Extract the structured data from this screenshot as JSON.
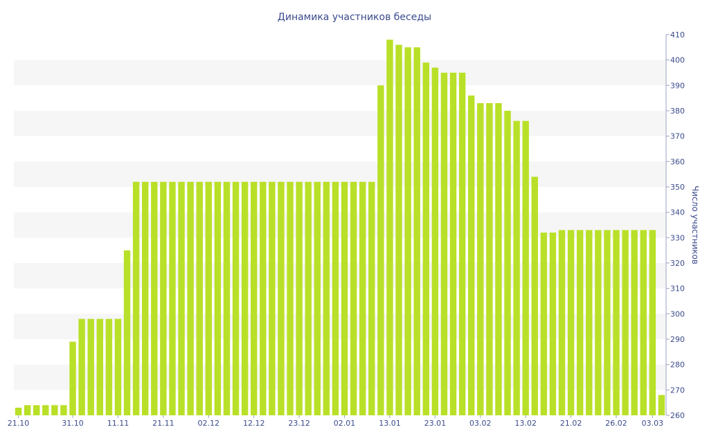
{
  "chart_data": {
    "type": "bar",
    "title": "Динамика участников беседы",
    "xlabel": "",
    "ylabel": "Число участников",
    "ylim": [
      260,
      410
    ],
    "yticks": [
      260,
      270,
      280,
      290,
      300,
      310,
      320,
      330,
      340,
      350,
      360,
      370,
      380,
      390,
      400,
      410
    ],
    "y_axis_side": "right",
    "grid": "alternating horizontal bands",
    "legend": "none",
    "bar_color": "#b9e028",
    "band_color": "#f6f6f6",
    "text_color": "#3a4a8c",
    "x_tick_labels": [
      {
        "index": 0,
        "label": "21.10"
      },
      {
        "index": 6,
        "label": "31.10"
      },
      {
        "index": 11,
        "label": "11.11"
      },
      {
        "index": 16,
        "label": "21.11"
      },
      {
        "index": 21,
        "label": "02.12"
      },
      {
        "index": 26,
        "label": "12.12"
      },
      {
        "index": 31,
        "label": "23.12"
      },
      {
        "index": 36,
        "label": "02.01"
      },
      {
        "index": 41,
        "label": "13.01"
      },
      {
        "index": 46,
        "label": "23.01"
      },
      {
        "index": 51,
        "label": "03.02"
      },
      {
        "index": 56,
        "label": "13.02"
      },
      {
        "index": 61,
        "label": "21.02"
      },
      {
        "index": 66,
        "label": "26.02"
      },
      {
        "index": 70,
        "label": "03.03"
      }
    ],
    "values": [
      263,
      264,
      264,
      264,
      264,
      264,
      289,
      298,
      298,
      298,
      298,
      298,
      325,
      352,
      352,
      352,
      352,
      352,
      352,
      352,
      352,
      352,
      352,
      352,
      352,
      352,
      352,
      352,
      352,
      352,
      352,
      352,
      352,
      352,
      352,
      352,
      352,
      352,
      352,
      352,
      390,
      408,
      406,
      405,
      405,
      399,
      397,
      395,
      395,
      395,
      386,
      383,
      383,
      383,
      380,
      376,
      376,
      354,
      332,
      332,
      333,
      333,
      333,
      333,
      333,
      333,
      333,
      333,
      333,
      333,
      333,
      268
    ]
  }
}
